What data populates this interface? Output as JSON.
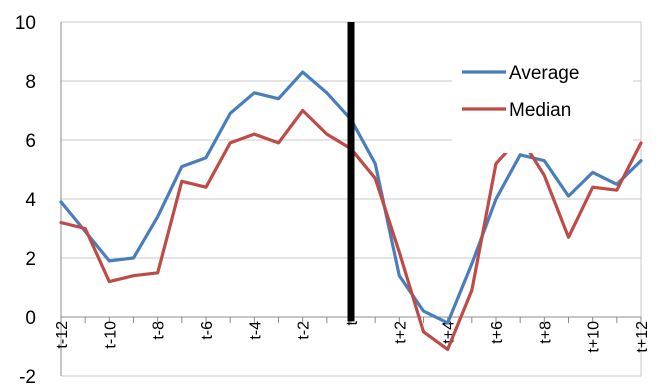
{
  "chart_data": {
    "type": "line",
    "categories": [
      "t-12",
      "t-11",
      "t-10",
      "t-9",
      "t-8",
      "t-7",
      "t-6",
      "t-5",
      "t-4",
      "t-3",
      "t-2",
      "t-1",
      "t",
      "t+1",
      "t+2",
      "t+3",
      "t+4",
      "t+5",
      "t+6",
      "t+7",
      "t+8",
      "t+9",
      "t+10",
      "t+11",
      "t+12"
    ],
    "x_tick_labels": [
      "t-12",
      "",
      "t-10",
      "",
      "t-8",
      "",
      "t-6",
      "",
      "t-4",
      "",
      "t-2",
      "",
      "t",
      "",
      "t+2",
      "",
      "t+4",
      "",
      "t+6",
      "",
      "t+8",
      "",
      "t+10",
      "",
      "t+12"
    ],
    "series": [
      {
        "name": "Average",
        "color": "#4a7ebb",
        "values": [
          3.9,
          2.9,
          1.9,
          2.0,
          3.4,
          5.1,
          5.4,
          6.9,
          7.6,
          7.4,
          8.3,
          7.6,
          6.7,
          5.2,
          1.4,
          0.2,
          -0.2,
          1.8,
          4.0,
          5.5,
          5.3,
          4.1,
          4.9,
          4.5,
          5.3
        ]
      },
      {
        "name": "Median",
        "color": "#be4b48",
        "values": [
          3.2,
          3.0,
          1.2,
          1.4,
          1.5,
          4.6,
          4.4,
          5.9,
          6.2,
          5.9,
          7.0,
          6.2,
          5.7,
          4.7,
          2.2,
          -0.5,
          -1.1,
          0.9,
          5.2,
          6.1,
          4.8,
          2.7,
          4.4,
          4.3,
          5.9
        ]
      }
    ],
    "y_ticks": [
      10,
      8,
      6,
      4,
      2,
      0,
      -2
    ],
    "ylim": [
      -2,
      10
    ],
    "event_marker": "t",
    "grid": "horizontal",
    "legend_position": "top-right"
  }
}
